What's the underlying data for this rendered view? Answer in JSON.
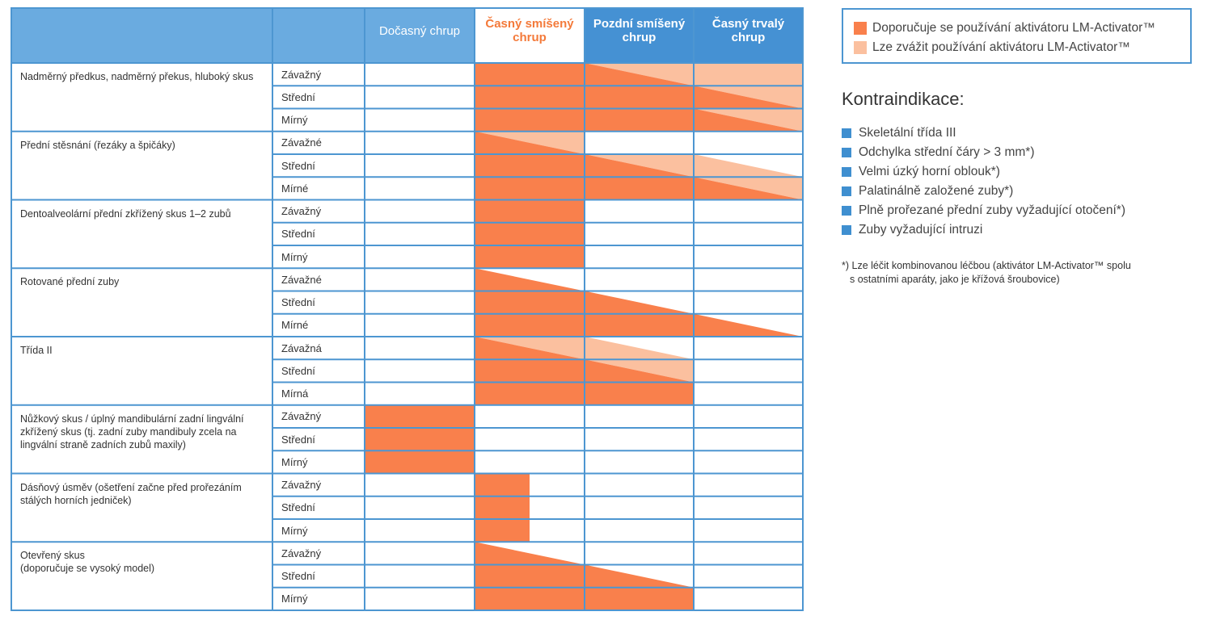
{
  "columns": [
    {
      "label": "Dočasný chrup",
      "style": "light"
    },
    {
      "label": "Časný smíšený chrup",
      "style": "highlight"
    },
    {
      "label": "Pozdní smíšený chrup",
      "style": "dark"
    },
    {
      "label": "Časný trvalý chrup",
      "style": "dark"
    }
  ],
  "categories": [
    {
      "label": "Nadměrný předkus, nadměrný překus, hluboký skus",
      "severities": [
        "Závažný",
        "Střední",
        "Mírný"
      ],
      "cells": [
        [
          "none",
          "rec",
          "rec-fade",
          "fade"
        ],
        [
          "none",
          "rec",
          "rec",
          "rec-fade"
        ],
        [
          "none",
          "rec",
          "rec",
          "rec-fade"
        ]
      ]
    },
    {
      "label": "Přední stěsnání (řezáky a špičáky)",
      "severities": [
        "Závažné",
        "Střední",
        "Mírné"
      ],
      "cells": [
        [
          "none",
          "rec-fade",
          "none",
          "none"
        ],
        [
          "none",
          "rec",
          "rec-fade",
          "fade-white"
        ],
        [
          "none",
          "rec",
          "rec",
          "rec-fade"
        ]
      ]
    },
    {
      "label": "Dentoalveolární přední zkřížený skus 1–2 zubů",
      "severities": [
        "Závažný",
        "Střední",
        "Mírný"
      ],
      "cells": [
        [
          "none",
          "rec",
          "none",
          "none"
        ],
        [
          "none",
          "rec",
          "none",
          "none"
        ],
        [
          "none",
          "rec",
          "none",
          "none"
        ]
      ]
    },
    {
      "label": "Rotované přední zuby",
      "severities": [
        "Závažné",
        "Střední",
        "Mírné"
      ],
      "cells": [
        [
          "none",
          "rec-white",
          "none",
          "none"
        ],
        [
          "none",
          "rec",
          "rec-white",
          "none"
        ],
        [
          "none",
          "rec",
          "rec",
          "rec-white"
        ]
      ]
    },
    {
      "label": "Třída II",
      "severities": [
        "Závažná",
        "Střední",
        "Mírná"
      ],
      "cells": [
        [
          "none",
          "rec-fade",
          "fade-white",
          "none"
        ],
        [
          "none",
          "rec",
          "rec-fade",
          "none"
        ],
        [
          "none",
          "rec",
          "rec",
          "none"
        ]
      ]
    },
    {
      "label": "Nůžkový skus / úplný mandibulární zadní lingvální zkřížený skus (tj. zadní zuby mandibuly zcela na lingvální straně zadních zubů maxily)",
      "severities": [
        "Závažný",
        "Střední",
        "Mírný"
      ],
      "cells": [
        [
          "rec",
          "none",
          "none",
          "none"
        ],
        [
          "rec",
          "none",
          "none",
          "none"
        ],
        [
          "rec",
          "none",
          "none",
          "none"
        ]
      ]
    },
    {
      "label": "Dásňový úsměv (ošetření začne před prořezáním stálých horních jedniček)",
      "severities": [
        "Závažný",
        "Střední",
        "Mírný"
      ],
      "cells": [
        [
          "none",
          "half",
          "none",
          "none"
        ],
        [
          "none",
          "half",
          "none",
          "none"
        ],
        [
          "none",
          "half",
          "none",
          "none"
        ]
      ]
    },
    {
      "label": "Otevřený skus\n(doporučuje se vysoký model)",
      "severities": [
        "Závažný",
        "Střední",
        "Mírný"
      ],
      "cells": [
        [
          "none",
          "rec-white",
          "none",
          "none"
        ],
        [
          "none",
          "rec",
          "rec-white",
          "none"
        ],
        [
          "none",
          "rec",
          "rec",
          "none"
        ]
      ]
    }
  ],
  "legend": {
    "recommended": "Doporučuje se používání aktivátoru LM-Activator™",
    "considered": "Lze zvážit používání aktivátoru LM-Activator™"
  },
  "contraindications": {
    "title": "Kontraindikace:",
    "items": [
      "Skeletální třída III",
      "Odchylka střední čáry > 3 mm*)",
      "Velmi úzký horní oblouk*)",
      "Palatinálně založené zuby*)",
      "Plně prořezané přední zuby vyžadující otočení*)",
      "Zuby vyžadující intruzi"
    ]
  },
  "footnote": {
    "line1": "*) Lze léčit kombinovanou léčbou (aktivátor LM-Activator™  spolu",
    "line2": "s ostatními aparáty, jako je křížová šroubovice)"
  },
  "colors": {
    "recommended": "#f9804c",
    "considered": "#fbc09f",
    "border": "#4d96d1",
    "header_blue": "#4591d3",
    "header_light": "#6aabe0",
    "header_highlight_text": "#f47a3a"
  }
}
